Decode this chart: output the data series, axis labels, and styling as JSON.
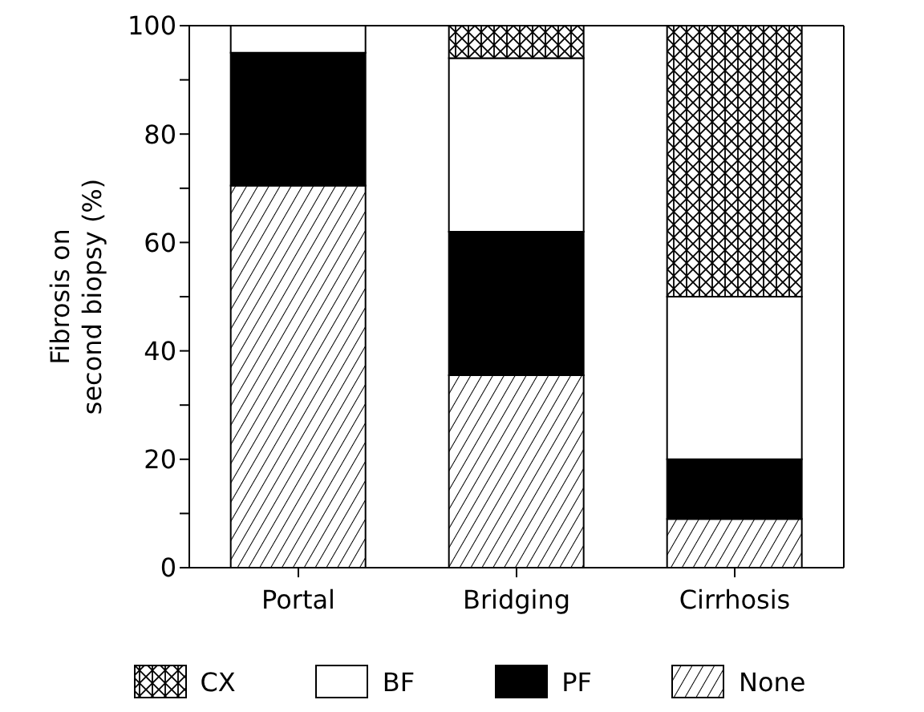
{
  "chart_data": {
    "type": "bar",
    "stacked": true,
    "categories": [
      "Portal",
      "Bridging",
      "Cirrhosis"
    ],
    "ylabel": "Fibrosis on\nsecond biopsy (%)",
    "series": [
      {
        "name": "None",
        "color": "#000000",
        "values": [
          70.5,
          35.5,
          9
        ]
      },
      {
        "name": "PF",
        "color": "#000000",
        "values": [
          24.5,
          26.5,
          11
        ]
      },
      {
        "name": "BF",
        "color": "#ffffff",
        "values": [
          5,
          32,
          30
        ]
      },
      {
        "name": "CX",
        "color": "#000000",
        "values": [
          0,
          6,
          50
        ]
      }
    ],
    "ylim": [
      0,
      100
    ],
    "yticks": [
      0,
      {
        "value": 10,
        "label": null
      },
      20,
      {
        "value": 30,
        "label": null
      },
      40,
      {
        "value": 50,
        "label": null
      },
      60,
      {
        "value": 70,
        "label": null
      },
      80,
      {
        "value": 90,
        "label": null
      },
      100
    ],
    "legend": "bottom",
    "grid": false
  }
}
